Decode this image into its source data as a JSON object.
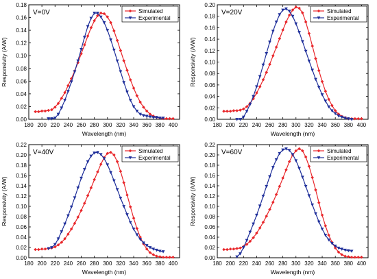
{
  "chart_data": [
    {
      "type": "line",
      "title": "V=0V",
      "xlabel": "Wavelength (nm)",
      "ylabel": "Responsivity (A/W)",
      "xlim": [
        180,
        410
      ],
      "ylim": [
        0,
        0.18
      ],
      "xticks": [
        180,
        200,
        220,
        240,
        260,
        280,
        300,
        320,
        340,
        360,
        380,
        400
      ],
      "yticks": [
        "0.00",
        "0.02",
        "0.04",
        "0.06",
        "0.08",
        "0.10",
        "0.12",
        "0.14",
        "0.16",
        "0.18"
      ],
      "ytick_values": [
        0,
        0.02,
        0.04,
        0.06,
        0.08,
        0.1,
        0.12,
        0.14,
        0.16,
        0.18
      ],
      "legend_position": "top-right",
      "series": [
        {
          "name": "Simulated",
          "color": "#e8262a",
          "marker": "diamond",
          "x": [
            190,
            195,
            200,
            205,
            210,
            215,
            220,
            225,
            230,
            235,
            240,
            245,
            250,
            255,
            260,
            265,
            270,
            275,
            280,
            285,
            290,
            295,
            300,
            305,
            310,
            315,
            320,
            325,
            330,
            335,
            340,
            345,
            350,
            355,
            360,
            365,
            370,
            375,
            380,
            385,
            390,
            395,
            400
          ],
          "y": [
            0.012,
            0.012,
            0.013,
            0.013,
            0.014,
            0.015,
            0.019,
            0.025,
            0.033,
            0.042,
            0.053,
            0.064,
            0.076,
            0.089,
            0.103,
            0.117,
            0.131,
            0.144,
            0.155,
            0.163,
            0.167,
            0.166,
            0.161,
            0.152,
            0.139,
            0.124,
            0.108,
            0.092,
            0.077,
            0.062,
            0.049,
            0.037,
            0.027,
            0.019,
            0.013,
            0.008,
            0.005,
            0.003,
            0.002,
            0.001,
            0.001,
            0.001,
            0.001
          ]
        },
        {
          "name": "Experimental",
          "color": "#1f2f9a",
          "marker": "triangle-down",
          "x": [
            210,
            215,
            220,
            225,
            230,
            235,
            240,
            245,
            250,
            255,
            260,
            265,
            270,
            275,
            280,
            285,
            290,
            295,
            300,
            305,
            310,
            315,
            320,
            325,
            330,
            335,
            340,
            345,
            350,
            355,
            360,
            365,
            370,
            375,
            380,
            385
          ],
          "y": [
            0.001,
            0.001,
            0.002,
            0.008,
            0.018,
            0.03,
            0.044,
            0.059,
            0.075,
            0.092,
            0.11,
            0.129,
            0.146,
            0.159,
            0.167,
            0.167,
            0.161,
            0.152,
            0.14,
            0.125,
            0.109,
            0.092,
            0.075,
            0.058,
            0.043,
            0.03,
            0.02,
            0.013,
            0.008,
            0.006,
            0.005,
            0.004,
            0.003,
            0.003,
            0.002,
            0.002
          ]
        }
      ]
    },
    {
      "type": "line",
      "title": "V=20V",
      "xlabel": "Wavelength (nm)",
      "ylabel": "Responsivity (A/W)",
      "xlim": [
        180,
        410
      ],
      "ylim": [
        0,
        0.2
      ],
      "xticks": [
        180,
        200,
        220,
        240,
        260,
        280,
        300,
        320,
        340,
        360,
        380,
        400
      ],
      "yticks": [
        "0.00",
        "0.02",
        "0.04",
        "0.06",
        "0.08",
        "0.10",
        "0.12",
        "0.14",
        "0.16",
        "0.18",
        "0.20"
      ],
      "ytick_values": [
        0,
        0.02,
        0.04,
        0.06,
        0.08,
        0.1,
        0.12,
        0.14,
        0.16,
        0.18,
        0.2
      ],
      "legend_position": "top-right",
      "series": [
        {
          "name": "Simulated",
          "color": "#e8262a",
          "marker": "diamond",
          "x": [
            190,
            195,
            200,
            205,
            210,
            215,
            220,
            225,
            230,
            235,
            240,
            245,
            250,
            255,
            260,
            265,
            270,
            275,
            280,
            285,
            290,
            295,
            300,
            305,
            310,
            315,
            320,
            325,
            330,
            335,
            340,
            345,
            350,
            355,
            360,
            365,
            370,
            375,
            380,
            385,
            390,
            395,
            400
          ],
          "y": [
            0.014,
            0.014,
            0.014,
            0.015,
            0.015,
            0.016,
            0.018,
            0.022,
            0.028,
            0.036,
            0.046,
            0.057,
            0.069,
            0.082,
            0.096,
            0.111,
            0.126,
            0.141,
            0.156,
            0.17,
            0.182,
            0.191,
            0.196,
            0.194,
            0.186,
            0.17,
            0.15,
            0.128,
            0.106,
            0.085,
            0.066,
            0.049,
            0.035,
            0.024,
            0.015,
            0.009,
            0.005,
            0.003,
            0.001,
            0.001,
            0.001,
            0.001,
            0.001
          ]
        },
        {
          "name": "Experimental",
          "color": "#1f2f9a",
          "marker": "triangle-down",
          "x": [
            210,
            215,
            220,
            225,
            230,
            235,
            240,
            245,
            250,
            255,
            260,
            265,
            270,
            275,
            280,
            285,
            290,
            295,
            300,
            305,
            310,
            315,
            320,
            325,
            330,
            335,
            340,
            345,
            350,
            355,
            360,
            365,
            370,
            375,
            380,
            385
          ],
          "y": [
            0.0,
            0.0,
            0.004,
            0.014,
            0.026,
            0.04,
            0.057,
            0.075,
            0.095,
            0.115,
            0.135,
            0.154,
            0.17,
            0.183,
            0.191,
            0.193,
            0.189,
            0.18,
            0.167,
            0.152,
            0.136,
            0.119,
            0.102,
            0.086,
            0.07,
            0.056,
            0.043,
            0.032,
            0.022,
            0.015,
            0.01,
            0.006,
            0.004,
            0.002,
            0.001,
            0.0
          ]
        }
      ]
    },
    {
      "type": "line",
      "title": "V=40V",
      "xlabel": "Wavelength (nm)",
      "ylabel": "Responsivity (A/W)",
      "xlim": [
        180,
        410
      ],
      "ylim": [
        0,
        0.22
      ],
      "xticks": [
        180,
        200,
        220,
        240,
        260,
        280,
        300,
        320,
        340,
        360,
        380,
        400
      ],
      "yticks": [
        "0.00",
        "0.02",
        "0.04",
        "0.06",
        "0.08",
        "0.10",
        "0.12",
        "0.14",
        "0.16",
        "0.18",
        "0.20",
        "0.22"
      ],
      "ytick_values": [
        0,
        0.02,
        0.04,
        0.06,
        0.08,
        0.1,
        0.12,
        0.14,
        0.16,
        0.18,
        0.2,
        0.22
      ],
      "legend_position": "top-right",
      "series": [
        {
          "name": "Simulated",
          "color": "#e8262a",
          "marker": "diamond",
          "x": [
            190,
            195,
            200,
            205,
            210,
            215,
            220,
            225,
            230,
            235,
            240,
            245,
            250,
            255,
            260,
            265,
            270,
            275,
            280,
            285,
            290,
            295,
            300,
            305,
            310,
            315,
            320,
            325,
            330,
            335,
            340,
            345,
            350,
            355,
            360,
            365,
            370,
            375,
            380,
            385,
            390,
            395,
            400
          ],
          "y": [
            0.016,
            0.016,
            0.017,
            0.017,
            0.018,
            0.019,
            0.021,
            0.025,
            0.03,
            0.037,
            0.046,
            0.056,
            0.067,
            0.079,
            0.092,
            0.106,
            0.121,
            0.136,
            0.152,
            0.167,
            0.182,
            0.195,
            0.203,
            0.205,
            0.2,
            0.187,
            0.168,
            0.146,
            0.122,
            0.099,
            0.077,
            0.057,
            0.04,
            0.027,
            0.017,
            0.01,
            0.006,
            0.003,
            0.002,
            0.001,
            0.001,
            0.001,
            0.001
          ]
        },
        {
          "name": "Experimental",
          "color": "#1f2f9a",
          "marker": "triangle-down",
          "x": [
            210,
            215,
            220,
            225,
            230,
            235,
            240,
            245,
            250,
            255,
            260,
            265,
            270,
            275,
            280,
            285,
            290,
            295,
            300,
            305,
            310,
            315,
            320,
            325,
            330,
            335,
            340,
            345,
            350,
            355,
            360,
            365,
            370,
            375,
            380,
            385
          ],
          "y": [
            0.018,
            0.02,
            0.026,
            0.037,
            0.051,
            0.066,
            0.082,
            0.099,
            0.117,
            0.136,
            0.155,
            0.172,
            0.187,
            0.198,
            0.204,
            0.205,
            0.201,
            0.193,
            0.181,
            0.166,
            0.15,
            0.133,
            0.116,
            0.1,
            0.084,
            0.069,
            0.056,
            0.045,
            0.036,
            0.029,
            0.024,
            0.02,
            0.017,
            0.015,
            0.013,
            0.012
          ]
        }
      ]
    },
    {
      "type": "line",
      "title": "V=60V",
      "xlabel": "Wavelength (nm)",
      "ylabel": "Responsivity (A/W)",
      "xlim": [
        180,
        410
      ],
      "ylim": [
        0,
        0.22
      ],
      "xticks": [
        180,
        200,
        220,
        240,
        260,
        280,
        300,
        320,
        340,
        360,
        380,
        400
      ],
      "yticks": [
        "0.00",
        "0.02",
        "0.04",
        "0.06",
        "0.08",
        "0.10",
        "0.12",
        "0.14",
        "0.16",
        "0.18",
        "0.20",
        "0.22"
      ],
      "ytick_values": [
        0,
        0.02,
        0.04,
        0.06,
        0.08,
        0.1,
        0.12,
        0.14,
        0.16,
        0.18,
        0.2,
        0.22
      ],
      "legend_position": "top-right",
      "series": [
        {
          "name": "Simulated",
          "color": "#e8262a",
          "marker": "diamond",
          "x": [
            190,
            195,
            200,
            205,
            210,
            215,
            220,
            225,
            230,
            235,
            240,
            245,
            250,
            255,
            260,
            265,
            270,
            275,
            280,
            285,
            290,
            295,
            300,
            305,
            310,
            315,
            320,
            325,
            330,
            335,
            340,
            345,
            350,
            355,
            360,
            365,
            370,
            375,
            380,
            385,
            390,
            395,
            400
          ],
          "y": [
            0.016,
            0.016,
            0.017,
            0.017,
            0.018,
            0.019,
            0.022,
            0.026,
            0.032,
            0.039,
            0.048,
            0.058,
            0.069,
            0.081,
            0.094,
            0.108,
            0.123,
            0.139,
            0.155,
            0.171,
            0.187,
            0.2,
            0.208,
            0.212,
            0.208,
            0.196,
            0.178,
            0.156,
            0.132,
            0.107,
            0.083,
            0.062,
            0.044,
            0.03,
            0.019,
            0.011,
            0.006,
            0.003,
            0.002,
            0.001,
            0.001,
            0.001,
            0.001
          ]
        },
        {
          "name": "Experimental",
          "color": "#1f2f9a",
          "marker": "triangle-down",
          "x": [
            210,
            215,
            220,
            225,
            230,
            235,
            240,
            245,
            250,
            255,
            260,
            265,
            270,
            275,
            280,
            285,
            290,
            295,
            300,
            305,
            310,
            315,
            320,
            325,
            330,
            335,
            340,
            345,
            350,
            355,
            360,
            365,
            370,
            375,
            380,
            385
          ],
          "y": [
            0.002,
            0.008,
            0.02,
            0.034,
            0.05,
            0.066,
            0.083,
            0.101,
            0.12,
            0.139,
            0.158,
            0.176,
            0.191,
            0.203,
            0.21,
            0.212,
            0.209,
            0.201,
            0.189,
            0.174,
            0.157,
            0.139,
            0.121,
            0.103,
            0.086,
            0.07,
            0.056,
            0.044,
            0.035,
            0.028,
            0.023,
            0.019,
            0.017,
            0.015,
            0.014,
            0.013
          ]
        }
      ]
    }
  ]
}
